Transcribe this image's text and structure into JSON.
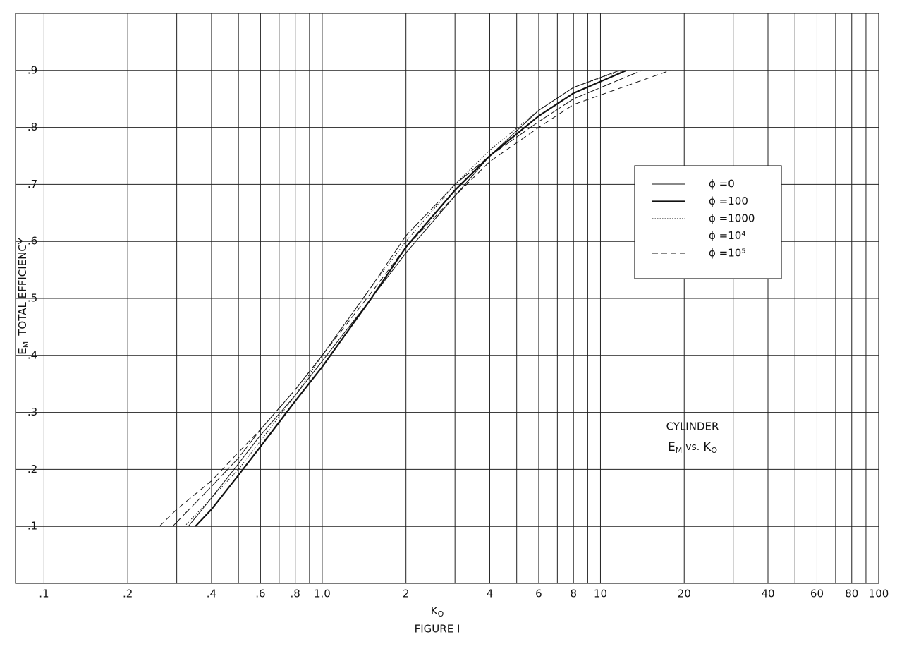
{
  "chart_data": {
    "type": "line",
    "xlabel": {
      "base": "K",
      "sub": "O"
    },
    "caption": "FIGURE I",
    "ylabel": {
      "base": "E",
      "sub": "M",
      "rest": "TOTAL EFFICIENCY"
    },
    "annotation": {
      "line1": "CYLINDER",
      "base": "E",
      "sub": "M",
      "mid": "vs.",
      "base2": "K",
      "sub2": "O"
    },
    "xscale": "log",
    "xlim": [
      0.079,
      100
    ],
    "ylim": [
      0,
      1.0
    ],
    "xticks": [
      {
        "value": 0.1,
        "label": ".1"
      },
      {
        "value": 0.2,
        "label": ".2"
      },
      {
        "value": 0.4,
        "label": ".4"
      },
      {
        "value": 0.6,
        "label": ".6"
      },
      {
        "value": 0.8,
        "label": ".8"
      },
      {
        "value": 1.0,
        "label": "1.0"
      },
      2,
      4,
      6,
      8,
      10,
      20,
      40,
      60,
      80,
      100
    ],
    "xminor": [
      0.3,
      0.5,
      0.7,
      0.9,
      3,
      5,
      7,
      9,
      30,
      50,
      70,
      90
    ],
    "yticks": [
      {
        "value": 0.1,
        "label": ".1"
      },
      {
        "value": 0.2,
        "label": ".2"
      },
      {
        "value": 0.3,
        "label": ".3"
      },
      {
        "value": 0.4,
        "label": ".4"
      },
      {
        "value": 0.5,
        "label": ".5"
      },
      {
        "value": 0.6,
        "label": ".6"
      },
      {
        "value": 0.7,
        "label": ".7"
      },
      {
        "value": 0.8,
        "label": ".8"
      },
      {
        "value": 0.9,
        "label": ".9"
      }
    ],
    "grid": true,
    "legend": "upper right",
    "series": [
      {
        "name": "ϕ =0",
        "color": "#111111",
        "width": 1,
        "dash": "none",
        "x": [
          0.33,
          0.4,
          0.5,
          0.6,
          0.8,
          1.0,
          1.5,
          2,
          3,
          4,
          6,
          8,
          11.7
        ],
        "values": [
          0.1,
          0.15,
          0.21,
          0.26,
          0.33,
          0.39,
          0.5,
          0.58,
          0.68,
          0.75,
          0.83,
          0.87,
          0.9
        ]
      },
      {
        "name": "ϕ =100",
        "color": "#111111",
        "width": 2.2,
        "dash": "none",
        "x": [
          0.35,
          0.4,
          0.5,
          0.6,
          0.8,
          1.0,
          1.5,
          2,
          3,
          4,
          6,
          8,
          12.4
        ],
        "values": [
          0.1,
          0.13,
          0.19,
          0.24,
          0.32,
          0.38,
          0.5,
          0.59,
          0.69,
          0.75,
          0.82,
          0.86,
          0.9
        ]
      },
      {
        "name": "ϕ =1000",
        "color": "#111111",
        "width": 1,
        "dash": "1.5 2",
        "x": [
          0.32,
          0.4,
          0.5,
          0.6,
          0.8,
          1.0,
          1.5,
          2,
          3,
          4,
          6,
          8,
          12
        ],
        "values": [
          0.1,
          0.15,
          0.2,
          0.25,
          0.33,
          0.4,
          0.52,
          0.6,
          0.7,
          0.76,
          0.83,
          0.87,
          0.9
        ]
      },
      {
        "name": "ϕ =10⁴",
        "color": "#111111",
        "width": 1,
        "dash": "16 4",
        "x": [
          0.29,
          0.4,
          0.5,
          0.6,
          0.8,
          1.0,
          1.5,
          2,
          3,
          4,
          6,
          8,
          14.1
        ],
        "values": [
          0.1,
          0.17,
          0.22,
          0.27,
          0.34,
          0.4,
          0.52,
          0.61,
          0.7,
          0.75,
          0.81,
          0.85,
          0.9
        ]
      },
      {
        "name": "ϕ =10⁵",
        "color": "#111111",
        "width": 1,
        "dash": "8 5",
        "x": [
          0.26,
          0.3,
          0.4,
          0.5,
          0.6,
          0.8,
          1.0,
          1.5,
          2,
          3,
          4,
          6,
          8,
          17.8
        ],
        "values": [
          0.1,
          0.13,
          0.18,
          0.23,
          0.27,
          0.34,
          0.4,
          0.51,
          0.59,
          0.68,
          0.74,
          0.8,
          0.84,
          0.9
        ]
      }
    ]
  }
}
